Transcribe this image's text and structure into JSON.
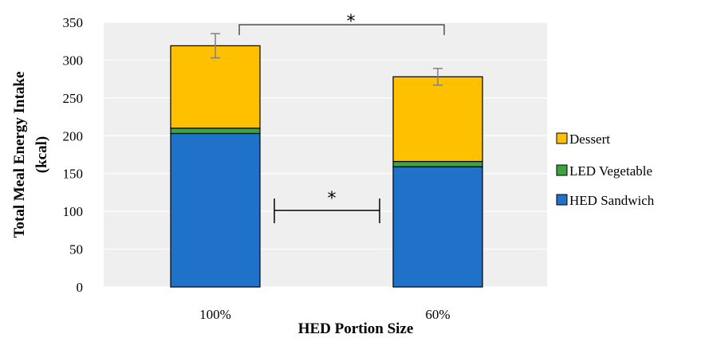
{
  "chart_data": {
    "type": "bar",
    "stacked": true,
    "xlabel": "HED Portion Size",
    "ylabel": "Total Meal Energy Intake (kcal)",
    "ylabel_lines": [
      "Total Meal Energy Intake",
      "(kcal)"
    ],
    "ylim": [
      0,
      350
    ],
    "yticks": [
      0,
      50,
      100,
      150,
      200,
      250,
      300,
      350
    ],
    "grid": true,
    "legend_position": "right",
    "categories": [
      "100%",
      "60%"
    ],
    "series": [
      {
        "name": "HED Sandwich",
        "color": "#1f72c8",
        "values": [
          203,
          159
        ]
      },
      {
        "name": "LED Vegetable",
        "color": "#3ea33e",
        "values": [
          7,
          7
        ]
      },
      {
        "name": "Dessert",
        "color": "#ffc000",
        "values": [
          109,
          112
        ]
      }
    ],
    "error_bars": [
      {
        "category": "100%",
        "mean": 319,
        "low": 303,
        "high": 335
      },
      {
        "category": "60%",
        "mean": 278,
        "low": 267,
        "high": 289
      }
    ],
    "annotations": [
      {
        "text": "*",
        "between": [
          "100%",
          "60%"
        ],
        "applies_to": "total"
      },
      {
        "text": "*",
        "between": [
          "100%",
          "60%"
        ],
        "applies_to": "HED Sandwich"
      }
    ]
  }
}
